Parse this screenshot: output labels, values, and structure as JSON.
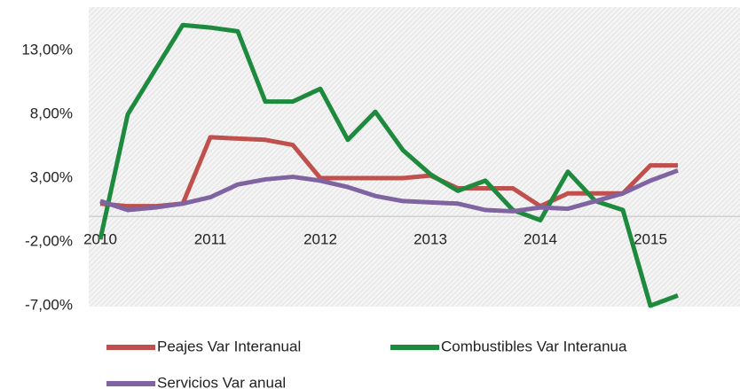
{
  "chart_data": {
    "type": "line",
    "categories": [
      "2010",
      null,
      null,
      null,
      "2011",
      null,
      null,
      null,
      "2012",
      null,
      null,
      null,
      "2013",
      null,
      null,
      null,
      "2014",
      null,
      null,
      null,
      "2015",
      null
    ],
    "series": [
      {
        "name": "Peajes Var Interanual",
        "color": "#c0504d",
        "values": [
          1,
          0.8,
          0.8,
          1,
          6.2,
          6.1,
          6,
          5.6,
          3,
          3,
          3,
          3,
          3.2,
          2.2,
          2.2,
          2.2,
          0.8,
          1.8,
          1.8,
          1.8,
          4,
          4
        ]
      },
      {
        "name": "Combustibles Var Interanua",
        "color": "#1e8a3e",
        "values": [
          -1.8,
          8,
          11.5,
          15,
          14.8,
          14.5,
          9,
          9,
          10,
          6,
          8.2,
          5.2,
          3.3,
          2,
          2.8,
          0.5,
          -0.3,
          3.5,
          1.2,
          0.5,
          -7,
          -6.2
        ]
      },
      {
        "name": "Servicios Var anual",
        "color": "#8064a2",
        "values": [
          1.2,
          0.5,
          0.7,
          1,
          1.5,
          2.5,
          2.9,
          3.1,
          2.8,
          2.3,
          1.6,
          1.2,
          1.1,
          1,
          0.5,
          0.4,
          0.7,
          0.6,
          1.2,
          1.8,
          2.8,
          3.6
        ]
      }
    ],
    "ylim": [
      -7,
      16
    ],
    "yticks": [
      {
        "value": -7,
        "label": "-7,00%"
      },
      {
        "value": -2,
        "label": "-2,00%"
      },
      {
        "value": 3,
        "label": "3,00%"
      },
      {
        "value": 8,
        "label": "8,00%"
      },
      {
        "value": 13,
        "label": "13,00%"
      }
    ]
  }
}
